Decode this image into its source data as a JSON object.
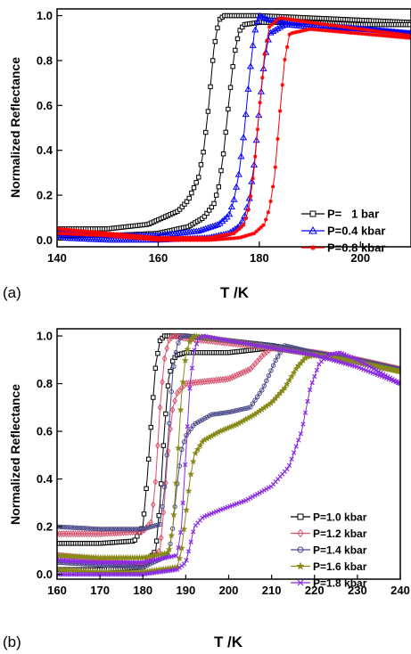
{
  "chart_data": [
    {
      "panel_label": "(a)",
      "type": "line",
      "xlabel": "T /K",
      "ylabel": "Normalized Reflectance",
      "xlim": [
        140,
        210
      ],
      "ylim": [
        -0.03,
        1.03
      ],
      "xticks": [
        140,
        160,
        180,
        200
      ],
      "xtick_labels": [
        "140",
        "160",
        "180",
        "200"
      ],
      "yticks": [
        0.0,
        0.2,
        0.4,
        0.6,
        0.8,
        1.0
      ],
      "ytick_labels": [
        "0.0",
        "0.2",
        "0.4",
        "0.6",
        "0.8",
        "1.0"
      ],
      "legend_position": "lower-right",
      "series": [
        {
          "name": "P=   1 bar",
          "color": "#000000",
          "marker": "square",
          "cooling": {
            "x": [
              140,
              150,
              158,
              164,
              166,
              168,
              169,
              170,
              171,
              172,
              173,
              174,
              180,
              190,
              200,
              210
            ],
            "y": [
              0.05,
              0.05,
              0.07,
              0.13,
              0.18,
              0.28,
              0.4,
              0.6,
              0.85,
              0.98,
              1.0,
              1.0,
              1.0,
              0.99,
              0.98,
              0.97
            ]
          },
          "heating": {
            "x": [
              140,
              150,
              160,
              166,
              169,
              171,
              172,
              173,
              174,
              175,
              176,
              177,
              180,
              190,
              200,
              210
            ],
            "y": [
              0.02,
              0.02,
              0.03,
              0.06,
              0.1,
              0.16,
              0.24,
              0.4,
              0.62,
              0.82,
              0.93,
              0.96,
              0.97,
              0.97,
              0.96,
              0.96
            ]
          }
        },
        {
          "name": "P=0.4 kbar",
          "color": "#0000ff",
          "marker": "triangle",
          "cooling": {
            "x": [
              140,
              150,
              160,
              168,
              172,
              174,
              175,
              176,
              177,
              178,
              179,
              180,
              182,
              190,
              200,
              210
            ],
            "y": [
              0.03,
              0.02,
              0.02,
              0.04,
              0.07,
              0.11,
              0.18,
              0.3,
              0.48,
              0.72,
              0.92,
              1.0,
              0.98,
              0.96,
              0.94,
              0.92
            ]
          },
          "heating": {
            "x": [
              140,
              150,
              160,
              170,
              174,
              176,
              177,
              178,
              179,
              180,
              181,
              182,
              185,
              190,
              200,
              210
            ],
            "y": [
              0.01,
              0.0,
              0.0,
              0.01,
              0.03,
              0.06,
              0.1,
              0.18,
              0.34,
              0.58,
              0.8,
              0.92,
              0.96,
              0.95,
              0.94,
              0.92
            ]
          }
        },
        {
          "name": "P=0.8 kbar",
          "color": "#ff0000",
          "marker": "asterisk",
          "cooling": {
            "x": [
              140,
              150,
              160,
              170,
              175,
              177,
              178,
              179,
              180,
              181,
              182,
              184,
              190,
              200,
              210
            ],
            "y": [
              0.05,
              0.03,
              0.01,
              0.01,
              0.03,
              0.07,
              0.15,
              0.32,
              0.58,
              0.82,
              0.95,
              0.99,
              0.97,
              0.94,
              0.91
            ]
          },
          "heating": {
            "x": [
              140,
              150,
              160,
              170,
              176,
              179,
              181,
              182,
              183,
              184,
              185,
              186,
              190,
              200,
              210
            ],
            "y": [
              0.03,
              0.02,
              0.0,
              0.0,
              0.01,
              0.03,
              0.07,
              0.14,
              0.28,
              0.55,
              0.8,
              0.92,
              0.94,
              0.92,
              0.9
            ]
          }
        }
      ]
    },
    {
      "panel_label": "(b)",
      "type": "line",
      "xlabel": "T /K",
      "ylabel": "Normalized Reflectance",
      "xlim": [
        160,
        240
      ],
      "ylim": [
        -0.02,
        1.03
      ],
      "xticks": [
        160,
        170,
        180,
        190,
        200,
        210,
        220,
        230,
        240
      ],
      "xtick_labels": [
        "160",
        "170",
        "180",
        "190",
        "200",
        "210",
        "220",
        "230",
        "240"
      ],
      "yticks": [
        0.0,
        0.2,
        0.4,
        0.6,
        0.8,
        1.0
      ],
      "ytick_labels": [
        "0.0",
        "0.2",
        "0.4",
        "0.6",
        "0.8",
        "1.0"
      ],
      "legend_position": "lower-right",
      "series": [
        {
          "name": "P=1.0 kbar",
          "color": "#000000",
          "marker": "square",
          "cooling": {
            "x": [
              160,
              170,
              178,
              180,
              181,
              182,
              183,
              184,
              185,
              190,
              200,
              210,
              220,
              230,
              240
            ],
            "y": [
              0.13,
              0.13,
              0.14,
              0.2,
              0.4,
              0.65,
              0.88,
              0.98,
              1.0,
              1.0,
              0.98,
              0.96,
              0.93,
              0.9,
              0.86
            ]
          },
          "heating": {
            "x": [
              160,
              170,
              180,
              183,
              184,
              185,
              186,
              187,
              188,
              190,
              200,
              210,
              220,
              230,
              240
            ],
            "y": [
              0.02,
              0.02,
              0.03,
              0.1,
              0.3,
              0.6,
              0.82,
              0.9,
              0.92,
              0.93,
              0.93,
              0.95,
              0.93,
              0.9,
              0.86
            ]
          }
        },
        {
          "name": "P=1.2 kbar",
          "color": "#d9536f",
          "marker": "diamond",
          "cooling": {
            "x": [
              160,
              170,
              180,
              182,
              183,
              184,
              185,
              186,
              187,
              190,
              200,
              210,
              220,
              230,
              240
            ],
            "y": [
              0.17,
              0.17,
              0.18,
              0.22,
              0.4,
              0.7,
              0.9,
              0.98,
              1.0,
              0.99,
              0.97,
              0.95,
              0.93,
              0.9,
              0.86
            ]
          },
          "heating": {
            "x": [
              160,
              170,
              180,
              184,
              185,
              186,
              187,
              188,
              190,
              195,
              200,
              205,
              208,
              210,
              220,
              230,
              240
            ],
            "y": [
              0.08,
              0.06,
              0.04,
              0.1,
              0.3,
              0.55,
              0.7,
              0.76,
              0.8,
              0.81,
              0.82,
              0.86,
              0.92,
              0.95,
              0.93,
              0.9,
              0.86
            ]
          }
        },
        {
          "name": "P=1.4 kbar",
          "color": "#4a4a8a",
          "marker": "circle",
          "cooling": {
            "x": [
              160,
              170,
              180,
              184,
              185,
              186,
              187,
              188,
              189,
              190,
              200,
              210,
              220,
              230,
              240
            ],
            "y": [
              0.2,
              0.19,
              0.19,
              0.21,
              0.35,
              0.6,
              0.85,
              0.96,
              1.0,
              1.0,
              0.98,
              0.96,
              0.93,
              0.9,
              0.86
            ]
          },
          "heating": {
            "x": [
              160,
              170,
              180,
              186,
              187,
              188,
              189,
              190,
              192,
              196,
              200,
              205,
              208,
              211,
              213,
              220,
              230,
              240
            ],
            "y": [
              0.05,
              0.04,
              0.03,
              0.08,
              0.2,
              0.38,
              0.52,
              0.58,
              0.63,
              0.67,
              0.68,
              0.7,
              0.78,
              0.9,
              0.96,
              0.93,
              0.9,
              0.86
            ]
          }
        },
        {
          "name": "P=1.6 kbar",
          "color": "#8a8a1a",
          "marker": "star",
          "cooling": {
            "x": [
              160,
              170,
              180,
              186,
              187,
              188,
              189,
              190,
              191,
              192,
              200,
              210,
              220,
              230,
              240
            ],
            "y": [
              0.08,
              0.07,
              0.07,
              0.09,
              0.2,
              0.45,
              0.75,
              0.92,
              0.98,
              1.0,
              0.98,
              0.95,
              0.92,
              0.89,
              0.85
            ]
          },
          "heating": {
            "x": [
              160,
              170,
              180,
              188,
              189,
              190,
              191,
              192,
              194,
              198,
              202,
              206,
              210,
              213,
              216,
              218,
              220,
              230,
              240
            ],
            "y": [
              0.02,
              0.01,
              0.01,
              0.03,
              0.1,
              0.25,
              0.4,
              0.5,
              0.56,
              0.6,
              0.63,
              0.67,
              0.72,
              0.78,
              0.87,
              0.91,
              0.92,
              0.89,
              0.85
            ]
          }
        },
        {
          "name": "P=1.8 kbar",
          "color": "#8a2be2",
          "marker": "cross",
          "cooling": {
            "x": [
              160,
              170,
              180,
              188,
              189,
              190,
              191,
              192,
              193,
              194,
              200,
              210,
              220,
              230,
              240
            ],
            "y": [
              0.06,
              0.05,
              0.05,
              0.08,
              0.2,
              0.5,
              0.8,
              0.94,
              0.99,
              1.0,
              0.98,
              0.95,
              0.92,
              0.87,
              0.8
            ]
          },
          "heating": {
            "x": [
              160,
              170,
              180,
              188,
              190,
              191,
              192,
              194,
              198,
              204,
              210,
              214,
              217,
              219,
              221,
              223,
              226,
              230,
              240
            ],
            "y": [
              0.0,
              0.0,
              0.0,
              0.02,
              0.05,
              0.12,
              0.2,
              0.24,
              0.27,
              0.31,
              0.37,
              0.45,
              0.6,
              0.78,
              0.88,
              0.92,
              0.93,
              0.9,
              0.8
            ]
          }
        }
      ]
    }
  ]
}
